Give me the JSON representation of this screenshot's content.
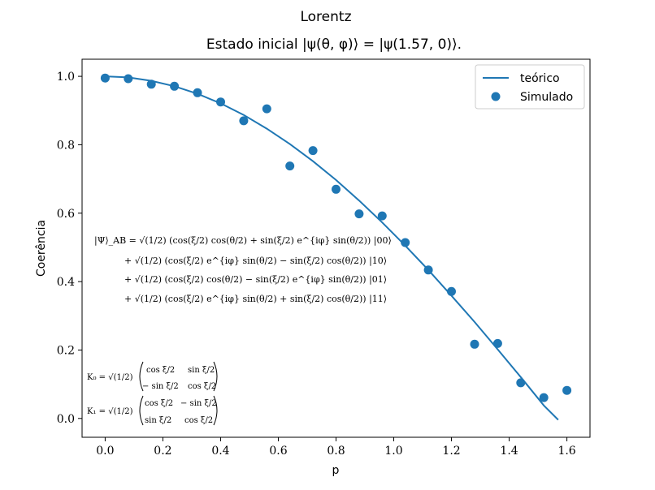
{
  "chart_data": {
    "type": "scatter",
    "title": "Lorentz",
    "subtitle": "Estado inicial |ψ(θ, φ)⟩ = |ψ(1.57, 0)⟩.",
    "xlabel": "p",
    "ylabel": "Coerência",
    "xlim": [
      -0.08,
      1.68
    ],
    "ylim": [
      -0.055,
      1.05
    ],
    "x_ticks": [
      0.0,
      0.2,
      0.4,
      0.6,
      0.8,
      1.0,
      1.2,
      1.4,
      1.6
    ],
    "x_tick_labels": [
      "0.0",
      "0.2",
      "0.4",
      "0.6",
      "0.8",
      "1.0",
      "1.2",
      "1.4",
      "1.6"
    ],
    "y_ticks": [
      0.0,
      0.2,
      0.4,
      0.6,
      0.8,
      1.0
    ],
    "y_tick_labels": [
      "0.0",
      "0.2",
      "0.4",
      "0.6",
      "0.8",
      "1.0"
    ],
    "grid": false,
    "legend_position": "top-right",
    "series": [
      {
        "name": "teórico",
        "kind": "line",
        "color": "#1f77b4",
        "x": [
          0.0,
          0.08,
          0.16,
          0.24,
          0.32,
          0.4,
          0.48,
          0.56,
          0.64,
          0.72,
          0.8,
          0.88,
          0.96,
          1.04,
          1.12,
          1.2,
          1.28,
          1.36,
          1.44,
          1.52,
          1.57
        ],
        "y": [
          1.0,
          0.997,
          0.987,
          0.971,
          0.949,
          0.921,
          0.887,
          0.847,
          0.802,
          0.752,
          0.697,
          0.637,
          0.573,
          0.505,
          0.434,
          0.359,
          0.282,
          0.202,
          0.121,
          0.038,
          -0.004
        ]
      },
      {
        "name": "Simulado",
        "kind": "scatter",
        "color": "#1f77b4",
        "x": [
          0.0,
          0.08,
          0.16,
          0.24,
          0.32,
          0.4,
          0.48,
          0.56,
          0.64,
          0.72,
          0.8,
          0.88,
          0.96,
          1.04,
          1.12,
          1.2,
          1.28,
          1.36,
          1.44,
          1.52,
          1.6
        ],
        "y": [
          0.995,
          0.993,
          0.977,
          0.971,
          0.952,
          0.925,
          0.87,
          0.905,
          0.738,
          0.783,
          0.67,
          0.598,
          0.592,
          0.514,
          0.434,
          0.371,
          0.217,
          0.219,
          0.104,
          0.061,
          0.082
        ]
      }
    ]
  },
  "annotations": {
    "state_equation": [
      "|Ψ⟩_AB = √(1/2) (cos(ξ/2) cos(θ/2) + sin(ξ/2) e^{iφ} sin(θ/2)) |00⟩",
      "+ √(1/2) (cos(ξ/2) e^{iφ} sin(θ/2) − sin(ξ/2) cos(θ/2)) |10⟩",
      "+ √(1/2) (cos(ξ/2) cos(θ/2) − sin(ξ/2) e^{iφ} sin(θ/2)) |01⟩",
      "+ √(1/2) (cos(ξ/2) e^{iφ} sin(θ/2) + sin(ξ/2) cos(θ/2)) |11⟩"
    ],
    "kraus_k0": {
      "label": "K₀ = √(1/2)",
      "r1c1": "cos ξ/2",
      "r1c2": "sin ξ/2",
      "r2c1": "− sin ξ/2",
      "r2c2": "cos ξ/2"
    },
    "kraus_k1": {
      "label": "K₁ = √(1/2)",
      "r1c1": "cos ξ/2",
      "r1c2": "− sin ξ/2",
      "r2c1": "sin ξ/2",
      "r2c2": "cos ξ/2"
    }
  }
}
